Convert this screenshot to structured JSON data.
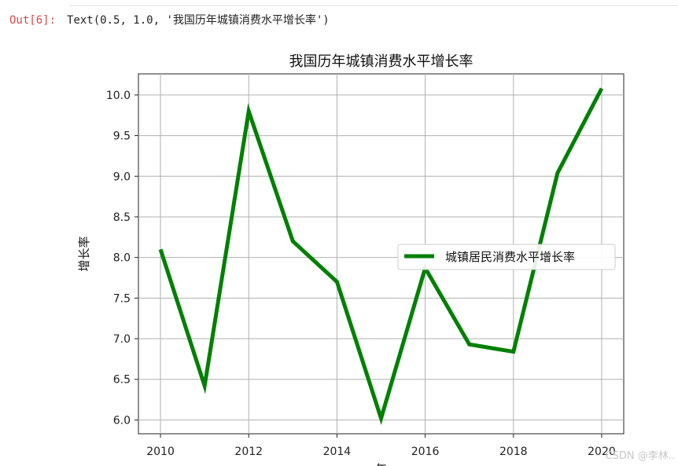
{
  "output": {
    "prompt": "Out[6]:",
    "text": "Text(0.5, 1.0, '我国历年城镇消费水平增长率')"
  },
  "watermark": "CSDN @李林..",
  "chart_data": {
    "type": "line",
    "title": "我国历年城镇消费水平增长率",
    "xlabel": "年",
    "ylabel": "增长率",
    "x": [
      2010,
      2011,
      2012,
      2013,
      2014,
      2015,
      2016,
      2017,
      2018,
      2019,
      2020
    ],
    "xticks": [
      2010,
      2012,
      2014,
      2016,
      2018,
      2020
    ],
    "xtick_labels": [
      "2010",
      "2012",
      "2014",
      "2016",
      "2018",
      "2020"
    ],
    "yticks": [
      6.0,
      6.5,
      7.0,
      7.5,
      8.0,
      8.5,
      9.0,
      9.5,
      10.0
    ],
    "ytick_labels": [
      "6.0",
      "6.5",
      "7.0",
      "7.5",
      "8.0",
      "8.5",
      "9.0",
      "9.5",
      "10.0"
    ],
    "xlim": [
      2009.5,
      2020.5
    ],
    "ylim": [
      5.83,
      10.26
    ],
    "grid": true,
    "legend_position": "center-right",
    "series": [
      {
        "name": "城镇居民消费水平增长率",
        "color": "#008000",
        "values": [
          8.1,
          6.42,
          9.8,
          8.2,
          7.7,
          6.02,
          7.87,
          6.93,
          6.84,
          9.04,
          10.08
        ]
      }
    ]
  }
}
